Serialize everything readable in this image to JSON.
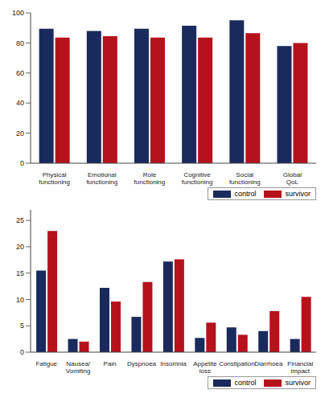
{
  "chart_data": [
    {
      "type": "bar",
      "categories": [
        "Physical functioning",
        "Emotional functioning",
        "Role functioning",
        "Cognitive functioning",
        "Social functioning",
        "Global QoL"
      ],
      "series": [
        {
          "name": "control",
          "color": "#1b2a5c",
          "values": [
            89.5,
            88,
            89.5,
            91.5,
            95,
            78
          ]
        },
        {
          "name": "survivor",
          "color": "#b5121b",
          "values": [
            83.5,
            84.5,
            83.5,
            83.5,
            86.5,
            80
          ]
        }
      ],
      "ylim": [
        0,
        100
      ],
      "yticks": [
        0,
        20,
        40,
        60,
        80,
        100
      ],
      "grid": false,
      "legend": "bottom right"
    },
    {
      "type": "bar",
      "categories": [
        "Fatigue",
        "Nausea/Vomiting",
        "Pain",
        "Dyspnoea",
        "Insomnia",
        "Appetite loss",
        "Constipation",
        "Diarrhoea",
        "Financial impact"
      ],
      "series": [
        {
          "name": "control",
          "color": "#1b2a5c",
          "values": [
            15.5,
            2.5,
            12.2,
            6.7,
            17.2,
            2.7,
            4.7,
            4,
            2.5
          ]
        },
        {
          "name": "survivor",
          "color": "#b5121b",
          "values": [
            23,
            2,
            9.6,
            13.3,
            17.6,
            5.6,
            3.3,
            7.8,
            10.5
          ]
        }
      ],
      "ylim": [
        0,
        27
      ],
      "yticks": [
        0,
        5,
        10,
        15,
        20,
        25
      ],
      "grid": false,
      "legend": "bottom right"
    }
  ]
}
